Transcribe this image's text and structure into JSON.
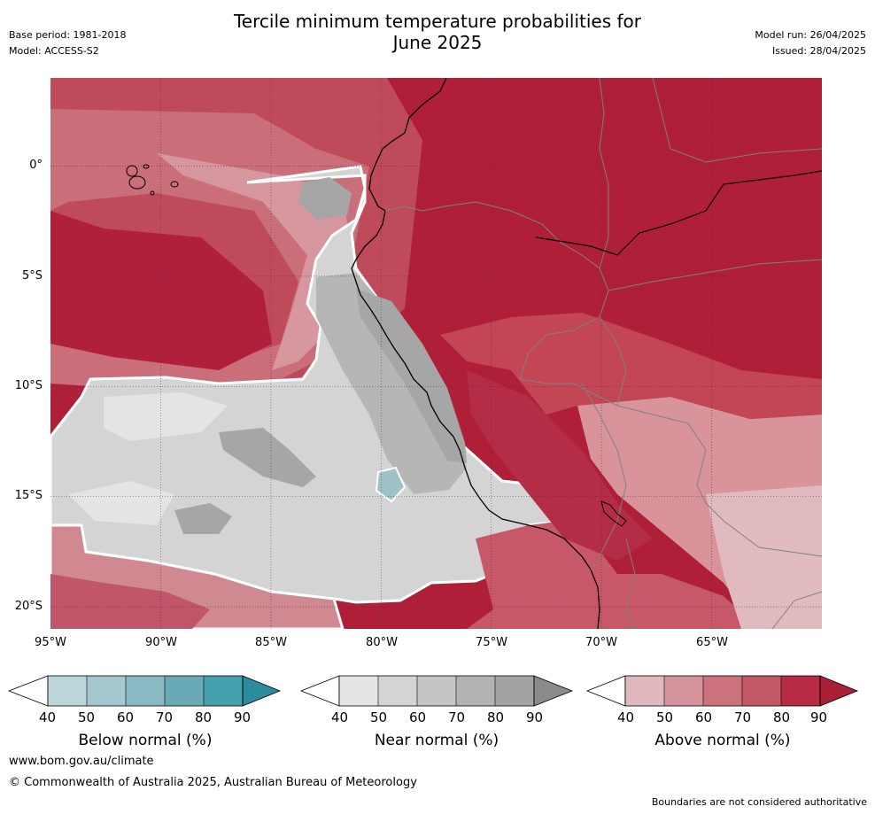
{
  "header": {
    "title_line1": "Tercile minimum temperature probabilities for",
    "title_line2": "June 2025",
    "base_period": "Base period: 1981-2018",
    "model": "Model: ACCESS-S2",
    "model_run": "Model run: 26/04/2025",
    "issued": "Issued: 28/04/2025"
  },
  "map": {
    "lat_labels": [
      "0°",
      "5°S",
      "10°S",
      "15°S",
      "20°S"
    ],
    "lon_labels": [
      "95°W",
      "90°W",
      "85°W",
      "80°W",
      "75°W",
      "70°W",
      "65°W"
    ],
    "lat_range": [
      -21,
      4
    ],
    "lon_range": [
      -95,
      -60
    ]
  },
  "legends": [
    {
      "title": "Below normal (%)",
      "ticks": [
        "40",
        "50",
        "60",
        "70",
        "80",
        "90"
      ],
      "colors": [
        "#bcd5da",
        "#a5c8ce",
        "#89b9c3",
        "#6aaab7",
        "#45a0b0",
        "#2c8b9c"
      ]
    },
    {
      "title": "Near normal (%)",
      "ticks": [
        "40",
        "50",
        "60",
        "70",
        "80",
        "90"
      ],
      "colors": [
        "#e4e4e4",
        "#d4d4d4",
        "#c4c4c4",
        "#b3b3b3",
        "#a3a3a3",
        "#8a8a8a"
      ]
    },
    {
      "title": "Above normal (%)",
      "ticks": [
        "40",
        "50",
        "60",
        "70",
        "80",
        "90"
      ],
      "colors": [
        "#e0b9be",
        "#d5949c",
        "#cb727d",
        "#c15864",
        "#b62b43",
        "#ab1f36"
      ]
    }
  ],
  "footer": {
    "url": "www.bom.gov.au/climate",
    "copyright": "© Commonwealth of Australia 2025, Australian Bureau of Meteorology",
    "disclaimer": "Boundaries are not considered authoritative"
  }
}
